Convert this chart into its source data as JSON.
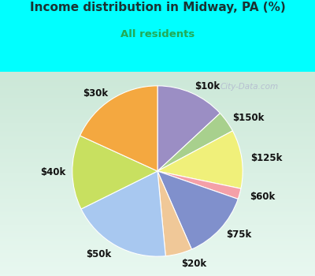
{
  "title": "Income distribution in Midway, PA (%)",
  "subtitle": "All residents",
  "title_color": "#1a3333",
  "subtitle_color": "#22aa55",
  "background_top": "#00ffff",
  "background_chart_gradient_top": "#e8f5f0",
  "background_chart_gradient_bottom": "#d0eedd",
  "labels": [
    "$10k",
    "$150k",
    "$125k",
    "$60k",
    "$75k",
    "$20k",
    "$50k",
    "$40k",
    "$30k"
  ],
  "sizes": [
    13,
    4,
    11,
    2,
    13,
    5,
    19,
    14,
    18
  ],
  "colors": [
    "#9b8ec4",
    "#a8d08d",
    "#f0f07a",
    "#f4a0a8",
    "#8090cc",
    "#f0c898",
    "#a8c8f0",
    "#c8e060",
    "#f4a840"
  ],
  "startangle": 90,
  "label_fontsize": 8.5,
  "watermark": "City-Data.com"
}
